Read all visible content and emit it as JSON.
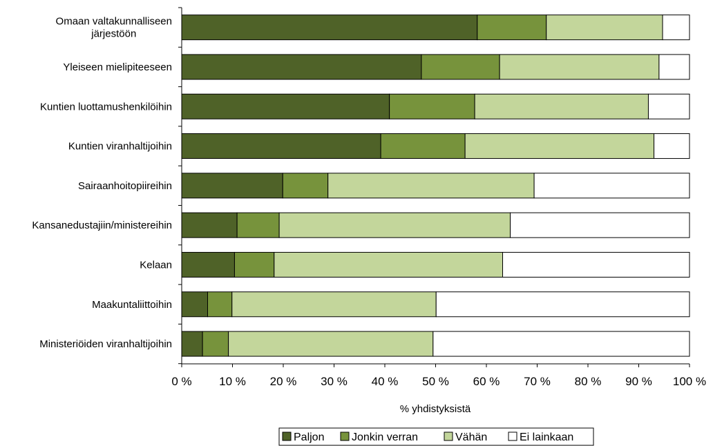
{
  "chart_data": {
    "type": "bar",
    "orientation": "horizontal",
    "stacked": true,
    "percent_stacked": true,
    "categories": [
      "Omaan valtakunnalliseen järjestöön",
      "Yleiseen mielipiteeseen",
      "Kuntien luottamushenkilöihin",
      "Kuntien viranhaltijoihin",
      "Sairaanhoitopiireihin",
      "Kansanedustajiin/ministereihin",
      "Kelaan",
      "Maakuntaliittoihin",
      "Ministeriöiden viranhaltijoihin"
    ],
    "category_lines": [
      [
        "Omaan valtakunnalliseen",
        "järjestöön"
      ],
      [
        "Yleiseen mielipiteeseen"
      ],
      [
        "Kuntien luottamushenkilöihin"
      ],
      [
        "Kuntien viranhaltijoihin"
      ],
      [
        "Sairaanhoitopiireihin"
      ],
      [
        "Kansanedustajiin/ministereihin"
      ],
      [
        "Kelaan"
      ],
      [
        "Maakuntaliittoihin"
      ],
      [
        "Ministeriöiden viranhaltijoihin"
      ]
    ],
    "series": [
      {
        "name": "Paljon",
        "color": "#4f6228",
        "values": [
          58.2,
          47.2,
          40.9,
          39.2,
          19.9,
          10.9,
          10.4,
          5.1,
          4.1
        ]
      },
      {
        "name": "Jonkin verran",
        "color": "#77933c",
        "values": [
          13.6,
          15.4,
          16.8,
          16.6,
          8.9,
          8.3,
          7.8,
          4.8,
          5.1
        ]
      },
      {
        "name": "Vähän",
        "color": "#c3d69b",
        "values": [
          22.9,
          31.4,
          34.2,
          37.2,
          40.6,
          45.5,
          45.0,
          40.2,
          40.3
        ]
      },
      {
        "name": "Ei lainkaan",
        "color": "#ffffff",
        "values": [
          5.3,
          6.0,
          8.1,
          7.0,
          30.6,
          35.3,
          36.8,
          49.9,
          50.5
        ]
      }
    ],
    "xlim": [
      0,
      100
    ],
    "x_ticks": [
      "0 %",
      "10 %",
      "20 %",
      "30 %",
      "40 %",
      "50 %",
      "60 %",
      "70 %",
      "80 %",
      "90 %",
      "100 %"
    ],
    "xlabel": "% yhdistyksistä",
    "ylabel": "",
    "title": "",
    "grid": false,
    "legend_position": "bottom"
  }
}
